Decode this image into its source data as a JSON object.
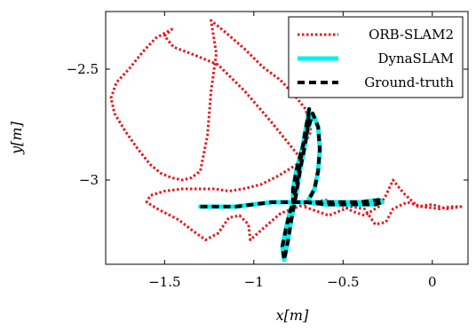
{
  "chart_data": {
    "type": "line",
    "title": "",
    "xlabel": "x[m]",
    "ylabel": "y[m]",
    "xlim": [
      -1.83,
      0.2
    ],
    "ylim": [
      -3.38,
      -2.24
    ],
    "grid": false,
    "legend_position": "top-right",
    "x_ticks": [
      {
        "value": -1.5,
        "label": "−1.5"
      },
      {
        "value": -1.0,
        "label": "−1"
      },
      {
        "value": -0.5,
        "label": "−0.5"
      },
      {
        "value": 0.0,
        "label": "0"
      }
    ],
    "y_ticks": [
      {
        "value": -2.5,
        "label": "−2.5"
      },
      {
        "value": -3.0,
        "label": "−3"
      }
    ],
    "series": [
      {
        "name": "ORB-SLAM2",
        "color": "#e8141c",
        "style": "dotted",
        "x": [
          -0.74,
          -0.9,
          -1.05,
          -1.2,
          -1.32,
          -1.45,
          -1.5,
          -1.46,
          -1.55,
          -1.62,
          -1.7,
          -1.77,
          -1.8,
          -1.78,
          -1.72,
          -1.65,
          -1.58,
          -1.52,
          -1.46,
          -1.4,
          -1.35,
          -1.3,
          -1.26,
          -1.24,
          -1.21,
          -1.24,
          -1.15,
          -1.05,
          -0.95,
          -0.85,
          -0.77,
          -0.71,
          -0.68,
          -0.72,
          -0.74,
          -0.86,
          -0.96,
          -1.06,
          -1.14,
          -1.22,
          -1.3,
          -1.4,
          -1.5,
          -1.58,
          -1.6,
          -1.54,
          -1.42,
          -1.34,
          -1.27,
          -1.2,
          -1.14,
          -1.08,
          -1.03,
          -1.02,
          -0.95,
          -0.85,
          -0.75,
          -0.67,
          -0.6,
          -0.52,
          -0.45,
          -0.38,
          -0.3,
          -0.26,
          -0.22,
          -0.16,
          -0.08,
          0.0,
          0.08,
          0.16,
          0.1,
          0.04,
          -0.06,
          -0.14,
          -0.22,
          -0.26,
          -0.32,
          -0.38,
          -0.46,
          -0.52,
          -0.58,
          -0.65,
          -0.72
        ],
        "y": [
          -2.9,
          -2.74,
          -2.6,
          -2.48,
          -2.44,
          -2.4,
          -2.35,
          -2.32,
          -2.36,
          -2.42,
          -2.5,
          -2.56,
          -2.63,
          -2.7,
          -2.78,
          -2.86,
          -2.93,
          -2.97,
          -2.99,
          -3.0,
          -2.99,
          -2.96,
          -2.8,
          -2.6,
          -2.43,
          -2.28,
          -2.34,
          -2.41,
          -2.49,
          -2.55,
          -2.62,
          -2.68,
          -2.78,
          -2.85,
          -2.92,
          -2.98,
          -3.02,
          -3.04,
          -3.05,
          -3.04,
          -3.04,
          -3.04,
          -3.05,
          -3.07,
          -3.1,
          -3.13,
          -3.18,
          -3.23,
          -3.27,
          -3.24,
          -3.17,
          -3.16,
          -3.2,
          -3.27,
          -3.22,
          -3.15,
          -3.12,
          -3.1,
          -3.09,
          -3.11,
          -3.14,
          -3.16,
          -3.12,
          -3.07,
          -3.0,
          -3.06,
          -3.12,
          -3.11,
          -3.13,
          -3.12,
          -3.12,
          -3.13,
          -3.12,
          -3.1,
          -3.13,
          -3.19,
          -3.2,
          -3.13,
          -3.12,
          -3.14,
          -3.16,
          -3.14,
          -3.12
        ]
      },
      {
        "name": "DynaSLAM",
        "color": "#00f0f0",
        "style": "solid",
        "x": [
          -1.3,
          -1.2,
          -1.1,
          -1.0,
          -0.9,
          -0.8,
          -0.7,
          -0.6,
          -0.5,
          -0.4,
          -0.3,
          -0.28,
          -0.32,
          -0.4,
          -0.5,
          -0.6,
          -0.7,
          -0.78,
          -0.8,
          -0.82,
          -0.84,
          -0.83,
          -0.81,
          -0.79,
          -0.76,
          -0.74,
          -0.72,
          -0.7,
          -0.69,
          -0.7,
          -0.72,
          -0.74,
          -0.76,
          -0.78,
          -0.78,
          -0.76,
          -0.73,
          -0.7,
          -0.67,
          -0.64,
          -0.63,
          -0.64,
          -0.66,
          -0.7
        ],
        "y": [
          -3.12,
          -3.12,
          -3.12,
          -3.11,
          -3.1,
          -3.1,
          -3.1,
          -3.1,
          -3.1,
          -3.1,
          -3.09,
          -3.1,
          -3.11,
          -3.11,
          -3.11,
          -3.11,
          -3.1,
          -3.1,
          -3.15,
          -3.22,
          -3.3,
          -3.36,
          -3.28,
          -3.18,
          -3.05,
          -2.95,
          -2.87,
          -2.78,
          -2.68,
          -2.73,
          -2.82,
          -2.92,
          -3.02,
          -3.1,
          -3.04,
          -2.95,
          -2.86,
          -2.78,
          -2.7,
          -2.76,
          -2.86,
          -2.96,
          -3.04,
          -3.1
        ]
      },
      {
        "name": "Ground-truth",
        "color": "#000000",
        "style": "dashed",
        "x": [
          -1.3,
          -1.2,
          -1.1,
          -1.0,
          -0.9,
          -0.8,
          -0.7,
          -0.6,
          -0.5,
          -0.4,
          -0.3,
          -0.28,
          -0.32,
          -0.4,
          -0.5,
          -0.6,
          -0.7,
          -0.78,
          -0.8,
          -0.82,
          -0.84,
          -0.83,
          -0.81,
          -0.79,
          -0.76,
          -0.74,
          -0.72,
          -0.7,
          -0.69,
          -0.7,
          -0.72,
          -0.74,
          -0.76,
          -0.78,
          -0.78,
          -0.76,
          -0.73,
          -0.7,
          -0.67,
          -0.64,
          -0.63,
          -0.64,
          -0.66,
          -0.7
        ],
        "y": [
          -3.12,
          -3.12,
          -3.12,
          -3.11,
          -3.1,
          -3.1,
          -3.1,
          -3.1,
          -3.1,
          -3.1,
          -3.09,
          -3.1,
          -3.11,
          -3.11,
          -3.11,
          -3.11,
          -3.1,
          -3.1,
          -3.15,
          -3.22,
          -3.3,
          -3.36,
          -3.28,
          -3.18,
          -3.05,
          -2.95,
          -2.87,
          -2.78,
          -2.68,
          -2.73,
          -2.82,
          -2.92,
          -3.02,
          -3.1,
          -3.04,
          -2.95,
          -2.86,
          -2.78,
          -2.7,
          -2.76,
          -2.86,
          -2.96,
          -3.04,
          -3.1
        ]
      }
    ]
  }
}
